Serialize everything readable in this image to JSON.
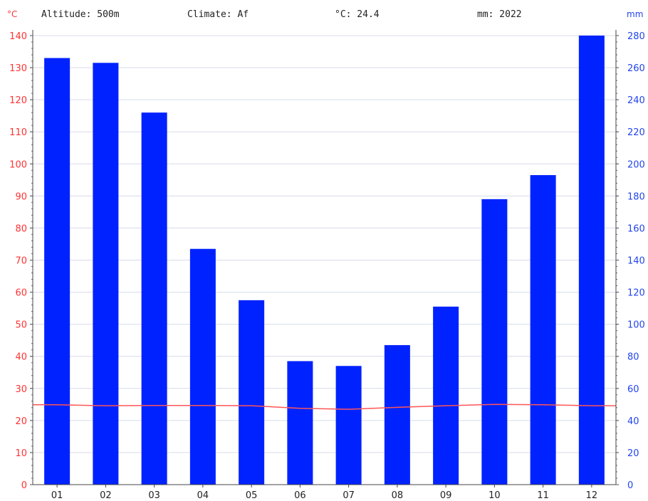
{
  "header": {
    "altitude": "Altitude: 500m",
    "climate": "Climate: Af",
    "avg_temp": "°C: 24.4",
    "total_precip": "mm: 2022"
  },
  "chart_data": {
    "type": "bar+line",
    "categories": [
      "01",
      "02",
      "03",
      "04",
      "05",
      "06",
      "07",
      "08",
      "09",
      "10",
      "11",
      "12"
    ],
    "series": [
      {
        "name": "mm",
        "type": "bar",
        "axis": "right",
        "values": [
          266,
          263,
          232,
          147,
          115,
          77,
          74,
          87,
          111,
          178,
          193,
          280
        ]
      },
      {
        "name": "°C",
        "type": "line",
        "axis": "left",
        "values": [
          24.9,
          24.6,
          24.7,
          24.7,
          24.6,
          23.8,
          23.5,
          24.1,
          24.6,
          25.0,
          24.9,
          24.6
        ]
      }
    ],
    "y_left": {
      "label": "°C",
      "range": [
        0,
        140
      ],
      "step": 10
    },
    "y_right": {
      "label": "mm",
      "range": [
        0,
        280
      ],
      "step": 20
    },
    "grid": true,
    "colors": {
      "bars": "#0022ff",
      "line": "#ff5555",
      "left_axis": "#ff3333",
      "right_axis": "#2244ee",
      "grid": "#d8dce8"
    }
  }
}
